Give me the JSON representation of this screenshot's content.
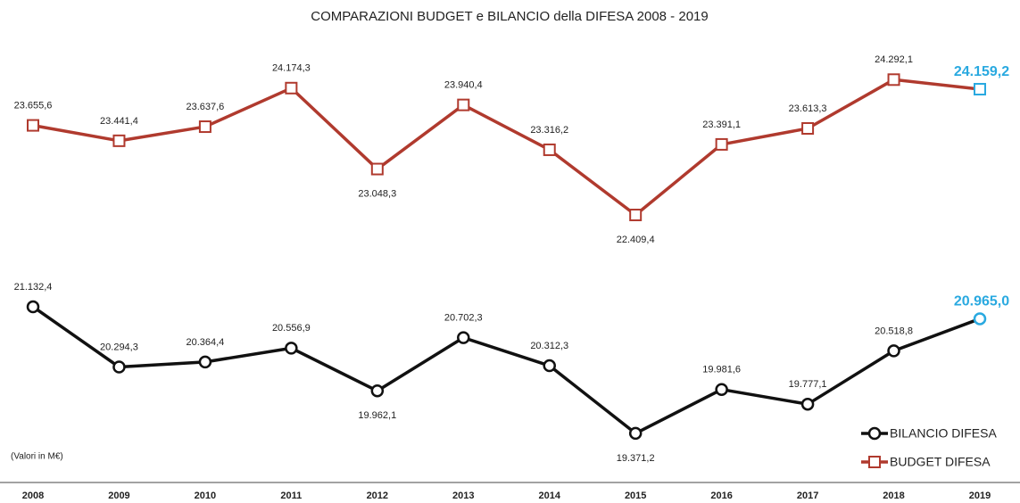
{
  "chart_data": {
    "type": "line",
    "title": "COMPARAZIONI BUDGET e BILANCIO della DIFESA 2008 - 2019",
    "note": "(Valori in M€)",
    "categories": [
      "2008",
      "2009",
      "2010",
      "2011",
      "2012",
      "2013",
      "2014",
      "2015",
      "2016",
      "2017",
      "2018",
      "2019"
    ],
    "series": [
      {
        "name": "BUDGET DIFESA",
        "color": "#b03a2e",
        "marker": "square",
        "values": [
          23655.6,
          23441.4,
          23637.6,
          24174.3,
          23048.3,
          23940.4,
          23316.2,
          22409.4,
          23391.1,
          23613.3,
          24292.1,
          24159.2
        ],
        "value_labels": [
          "23.655,6",
          "23.441,4",
          "23.637,6",
          "24.174,3",
          "23.048,3",
          "23.940,4",
          "23.316,2",
          "22.409,4",
          "23.391,1",
          "23.613,3",
          "24.292,1",
          "24.159,2"
        ]
      },
      {
        "name": "BILANCIO DIFESA",
        "color": "#111111",
        "marker": "circle",
        "values": [
          21132.4,
          20294.3,
          20364.4,
          20556.9,
          19962.1,
          20702.3,
          20312.3,
          19371.2,
          19981.6,
          19777.1,
          20518.8,
          20965.0
        ],
        "value_labels": [
          "21.132,4",
          "20.294,3",
          "20.364,4",
          "20.556,9",
          "19.962,1",
          "20.702,3",
          "20.312,3",
          "19.371,2",
          "19.981,6",
          "19.777,1",
          "20.518,8",
          "20.965,0"
        ]
      }
    ],
    "highlight_color": "#29a9e0",
    "ylim": [
      18700,
      25400
    ],
    "legend": "lower right"
  }
}
